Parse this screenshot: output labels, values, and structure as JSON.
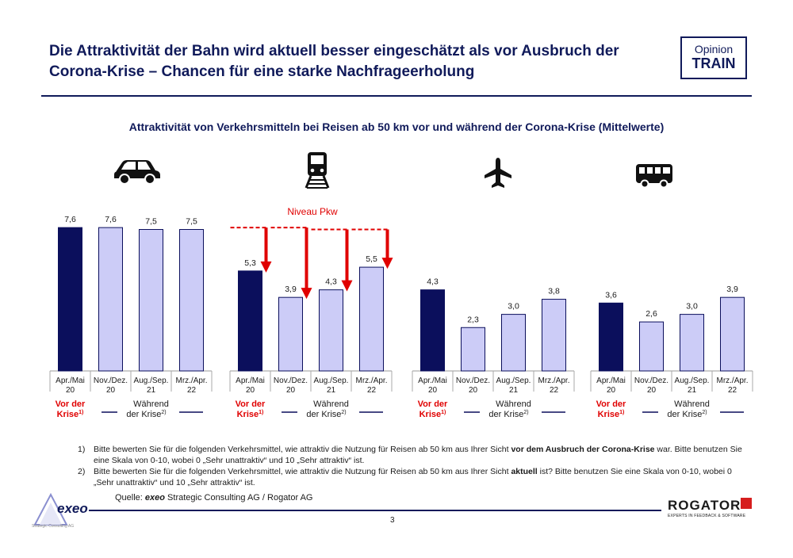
{
  "header": {
    "title": "Die Attraktivität der Bahn wird aktuell besser eingeschätzt als vor Ausbruch der Corona-Krise – Chancen für eine starke Nachfrageerholung",
    "badge_line1": "Opinion",
    "badge_line2": "TRAIN"
  },
  "chart_data": {
    "type": "bar",
    "title": "Attraktivität von Verkehrsmitteln bei Reisen ab 50 km vor und während der Corona-Krise (Mittelwerte)",
    "categories": [
      "Apr./Mai 20",
      "Nov./Dez. 20",
      "Aug./Sep. 21",
      "Mrz./Apr. 22"
    ],
    "ylim": [
      0,
      10
    ],
    "groups": [
      {
        "icon": "car-icon",
        "values": [
          7.6,
          7.6,
          7.5,
          7.5
        ],
        "labels": [
          "7,6",
          "7,6",
          "7,5",
          "7,5"
        ]
      },
      {
        "icon": "train-icon",
        "values": [
          5.3,
          3.9,
          4.3,
          5.5
        ],
        "labels": [
          "5,3",
          "3,9",
          "4,3",
          "5,5"
        ],
        "annotation": "Niveau Pkw"
      },
      {
        "icon": "plane-icon",
        "values": [
          4.3,
          2.3,
          3.0,
          3.8
        ],
        "labels": [
          "4,3",
          "2,3",
          "3,0",
          "3,8"
        ]
      },
      {
        "icon": "bus-icon",
        "values": [
          3.6,
          2.6,
          3.0,
          3.9
        ],
        "labels": [
          "3,6",
          "2,6",
          "3,0",
          "3,9"
        ]
      }
    ],
    "category_lines": [
      [
        "Apr./Mai",
        "20"
      ],
      [
        "Nov./Dez.",
        "20"
      ],
      [
        "Aug./Sep.",
        "21"
      ],
      [
        "Mrz./Apr.",
        "22"
      ]
    ],
    "legend": {
      "before_line1": "Vor der",
      "before_line2": "Krise",
      "before_sup": "1)",
      "during_line1": "Während",
      "during_line2": "der Krise",
      "during_sup": "2)"
    },
    "colors": {
      "before": "#0b0f5c",
      "during": "#ccccf7",
      "border": "#0b0f5c",
      "highlight": "#e00000"
    }
  },
  "footnotes": [
    {
      "num": "1)",
      "text_a": "Bitte bewerten Sie für die folgenden Verkehrsmittel, wie attraktiv die Nutzung für Reisen ab 50 km aus Ihrer Sicht ",
      "bold": "vor dem Ausbruch der Corona-Krise",
      "text_b": " war. Bitte benutzen Sie eine Skala von 0-10, wobei 0 „Sehr unattraktiv“ und 10 „Sehr attraktiv“ ist."
    },
    {
      "num": "2)",
      "text_a": "Bitte bewerten Sie für die folgenden Verkehrsmittel, wie attraktiv die Nutzung für Reisen ab 50 km aus Ihrer Sicht ",
      "bold": "aktuell",
      "text_b": " ist? Bitte benutzen Sie eine Skala von 0-10, wobei 0 „Sehr unattraktiv“ und 10 „Sehr attraktiv“ ist."
    }
  ],
  "source": {
    "prefix": "Quelle: ",
    "brand": "exeo",
    "rest": " Strategic Consulting AG / Rogator AG"
  },
  "page_number": "3",
  "logos": {
    "exeo": "exeo",
    "exeo_sub": "Strategic Consulting AG",
    "rogator": "ROGATOR",
    "rogator_tag": "EXPERTS IN FEEDBACK & SOFTWARE"
  }
}
